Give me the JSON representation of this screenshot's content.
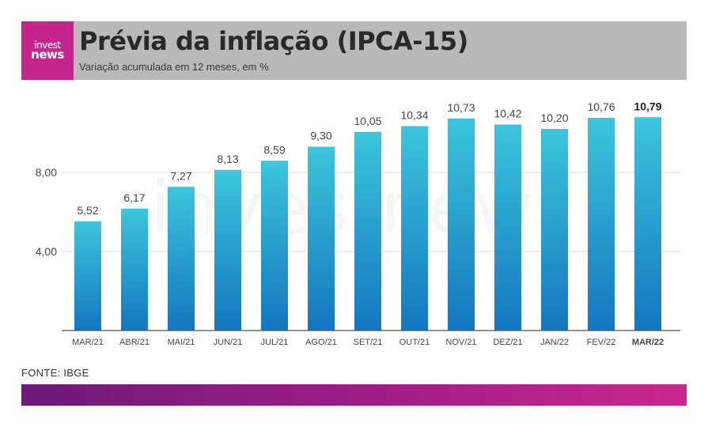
{
  "header": {
    "logo_line1": "invest",
    "logo_line2": "news",
    "title": "Prévia da inflação (IPCA-15)",
    "subtitle": "Variação acumulada em 12 meses, em %"
  },
  "watermark": "investnews",
  "source": "FONTE: IBGE",
  "colors": {
    "bar_top": "#3cc6dc",
    "bar_bottom": "#1476bf",
    "header_bg": "#b9b9b9",
    "logo_bg": "#c4268c"
  },
  "chart_data": {
    "type": "bar",
    "categories": [
      "MAR/21",
      "ABR/21",
      "MAI/21",
      "JUN/21",
      "JUL/21",
      "AGO/21",
      "SET/21",
      "OUT/21",
      "NOV/21",
      "DEZ/21",
      "JAN/22",
      "FEV/22",
      "MAR/22"
    ],
    "values": [
      5.52,
      6.17,
      7.27,
      8.13,
      8.59,
      9.3,
      10.05,
      10.34,
      10.73,
      10.42,
      10.2,
      10.76,
      10.79
    ],
    "value_labels": [
      "5,52",
      "6,17",
      "7,27",
      "8,13",
      "8,59",
      "9,30",
      "10,05",
      "10,34",
      "10,73",
      "10,42",
      "10,20",
      "10,76",
      "10,79"
    ],
    "highlight_last": true,
    "yticks": [
      4,
      8
    ],
    "ytick_labels": [
      "4,00",
      "8,00"
    ],
    "ylim": [
      0,
      12
    ],
    "grid": true
  }
}
